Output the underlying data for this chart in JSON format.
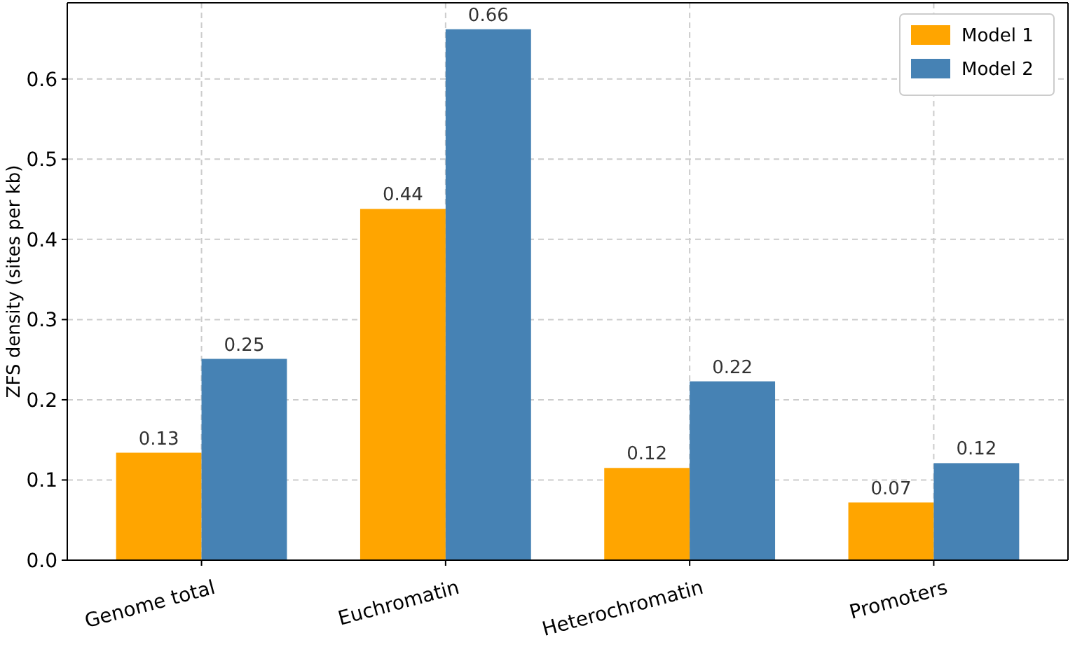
{
  "chart_data": {
    "type": "bar",
    "ylabel": "ZFS density (sites per kb)",
    "categories": [
      "Genome total",
      "Euchromatin",
      "Heterochromatin",
      "Promoters"
    ],
    "series": [
      {
        "name": "Model 1",
        "color": "#ffa500",
        "values": [
          0.134,
          0.438,
          0.115,
          0.072
        ],
        "value_labels": [
          "0.13",
          "0.44",
          "0.12",
          "0.07"
        ]
      },
      {
        "name": "Model 2",
        "color": "#4682b4",
        "values": [
          0.251,
          0.662,
          0.223,
          0.121
        ],
        "value_labels": [
          "0.25",
          "0.66",
          "0.22",
          "0.12"
        ]
      }
    ],
    "ylim": [
      0,
      0.695
    ],
    "yticks": [
      {
        "value": 0,
        "label": "0.0"
      },
      0.1,
      0.2,
      0.3,
      0.4,
      0.5,
      0.6
    ],
    "grid": true,
    "legend": "top right"
  }
}
